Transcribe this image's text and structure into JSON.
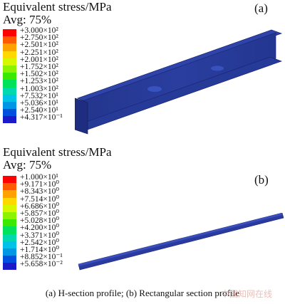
{
  "panel_a": {
    "title": "Equivalent stress/MPa",
    "avg": "Avg: 75%",
    "tag": "(a)",
    "legend": [
      {
        "label": "+3.000×10²",
        "color": "#ff0000"
      },
      {
        "label": "+2.750×10²",
        "color": "#ff5a00"
      },
      {
        "label": "+2.501×10²",
        "color": "#ffa200"
      },
      {
        "label": "+2.251×10²",
        "color": "#ffd800"
      },
      {
        "label": "+2.001×10²",
        "color": "#d6f700"
      },
      {
        "label": "+1.752×10²",
        "color": "#8df200"
      },
      {
        "label": "+1.502×10²",
        "color": "#3be800"
      },
      {
        "label": "+1.253×10²",
        "color": "#00e25a"
      },
      {
        "label": "+1.003×10²",
        "color": "#00d8b0"
      },
      {
        "label": "+7.532×10¹",
        "color": "#00c2e8"
      },
      {
        "label": "+5.036×10¹",
        "color": "#0096e6"
      },
      {
        "label": "+2.540×10¹",
        "color": "#0050e0"
      },
      {
        "label": "+4.317×10⁻¹",
        "color": "#1a1ac8"
      }
    ]
  },
  "panel_b": {
    "title": "Equivalent stress/MPa",
    "avg": "Avg: 75%",
    "tag": "(b)",
    "legend": [
      {
        "label": "+1.000×10¹",
        "color": "#ff0000"
      },
      {
        "label": "+9.171×10⁰",
        "color": "#ff5a00"
      },
      {
        "label": "+8.343×10⁰",
        "color": "#ffa200"
      },
      {
        "label": "+7.514×10⁰",
        "color": "#ffd800"
      },
      {
        "label": "+6.686×10⁰",
        "color": "#d6f700"
      },
      {
        "label": "+5.857×10⁰",
        "color": "#8df200"
      },
      {
        "label": "+5.028×10⁰",
        "color": "#3be800"
      },
      {
        "label": "+4.200×10⁰",
        "color": "#00e25a"
      },
      {
        "label": "+3.371×10⁰",
        "color": "#00d8b0"
      },
      {
        "label": "+2.542×10⁰",
        "color": "#00c2e8"
      },
      {
        "label": "+1.714×10⁰",
        "color": "#0096e6"
      },
      {
        "label": "+8.852×10⁻¹",
        "color": "#0050e0"
      },
      {
        "label": "+5.658×10⁻²",
        "color": "#1a1ac8"
      }
    ]
  },
  "caption": "(a)  H-section profile;  (b)  Rectangular section profile",
  "watermark": "中国知网在线"
}
